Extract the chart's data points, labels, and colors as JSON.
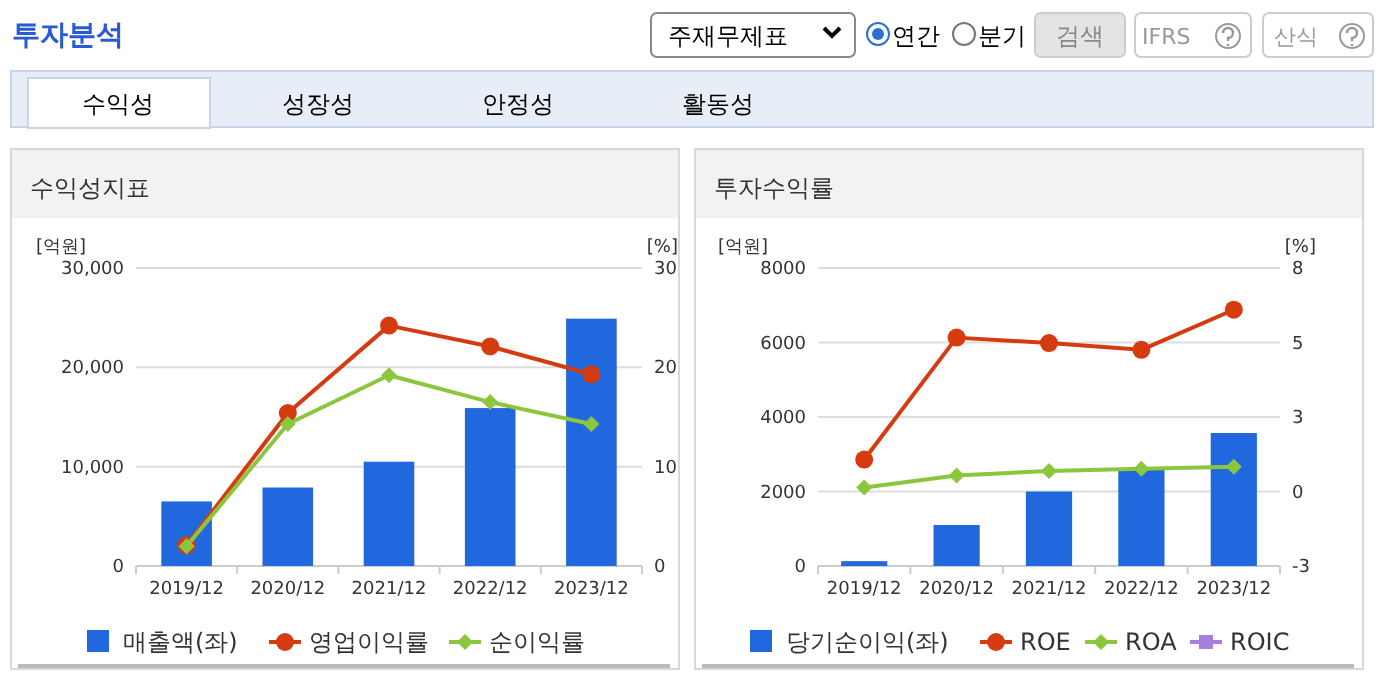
{
  "chart_data": [
    {
      "type": "other",
      "title": "투자분석",
      "annotations": [
        "주재무제표",
        "연간",
        "분기",
        "검색",
        "IFRS",
        "산식",
        "수익성",
        "성장성",
        "안정성",
        "활동성"
      ]
    },
    {
      "type": "bar",
      "title": "수익성지표",
      "ylabel": "[억원]",
      "y2label": "[%]",
      "categories": [
        "2019/12",
        "2020/12",
        "2021/12",
        "2022/12",
        "2023/12"
      ],
      "series": [
        {
          "name": "매출액(좌)",
          "type": "bar",
          "color": "#2168de",
          "values": [
            6500,
            7900,
            10500,
            15900,
            24900
          ]
        },
        {
          "name": "영업이익률",
          "type": "line",
          "axis": "y2",
          "marker": "circle",
          "color": "#d63b10",
          "values": [
            2.1,
            15.4,
            24.2,
            22.1,
            19.3
          ]
        },
        {
          "name": "순이익률",
          "type": "line",
          "axis": "y2",
          "marker": "diamond",
          "color": "#8cc63f",
          "values": [
            2.0,
            14.3,
            19.2,
            16.5,
            14.3
          ]
        }
      ],
      "ylim": [
        0,
        30000
      ],
      "yticks": [
        0,
        {
          "value": 10000,
          "label": "10,000"
        },
        {
          "value": 20000,
          "label": "20,000"
        },
        {
          "value": 30000,
          "label": "30,000"
        }
      ],
      "y2lim": [
        0,
        30
      ],
      "y2ticks": [
        0,
        10,
        20,
        30
      ],
      "grid": "y",
      "legend": "bottom"
    },
    {
      "type": "bar",
      "title": "투자수익률",
      "ylabel": "[억원]",
      "y2label": "[%]",
      "categories": [
        "2019/12",
        "2020/12",
        "2021/12",
        "2022/12",
        "2023/12"
      ],
      "series": [
        {
          "name": "당기순이익(좌)",
          "type": "bar",
          "color": "#2168de",
          "values": [
            130,
            1100,
            2000,
            2600,
            3570
          ]
        },
        {
          "name": "ROE",
          "type": "line",
          "axis": "y2",
          "marker": "circle",
          "color": "#d63b10",
          "values": [
            0.93,
            5.43,
            5.23,
            4.98,
            6.46
          ]
        },
        {
          "name": "ROA",
          "type": "line",
          "axis": "y2",
          "marker": "diamond",
          "color": "#8cc63f",
          "values": [
            -0.1,
            0.34,
            0.51,
            0.59,
            0.66
          ]
        },
        {
          "name": "ROIC",
          "type": "line",
          "axis": "y2",
          "marker": "square",
          "color": "#a77fdf",
          "values": [
            null,
            null,
            null,
            null,
            null
          ]
        }
      ],
      "ylim": [
        0,
        8000
      ],
      "yticks": [
        0,
        2000,
        4000,
        6000,
        8000
      ],
      "y2lim": [
        -3,
        8
      ],
      "y2ticks": [
        {
          "value": -3,
          "label": "-3"
        },
        {
          "value": -0.25,
          "label": "0"
        },
        {
          "value": 2.5,
          "label": "3"
        },
        {
          "value": 5.25,
          "label": "5"
        },
        {
          "value": 8,
          "label": "8"
        }
      ],
      "grid": "y",
      "legend": "bottom"
    }
  ]
}
